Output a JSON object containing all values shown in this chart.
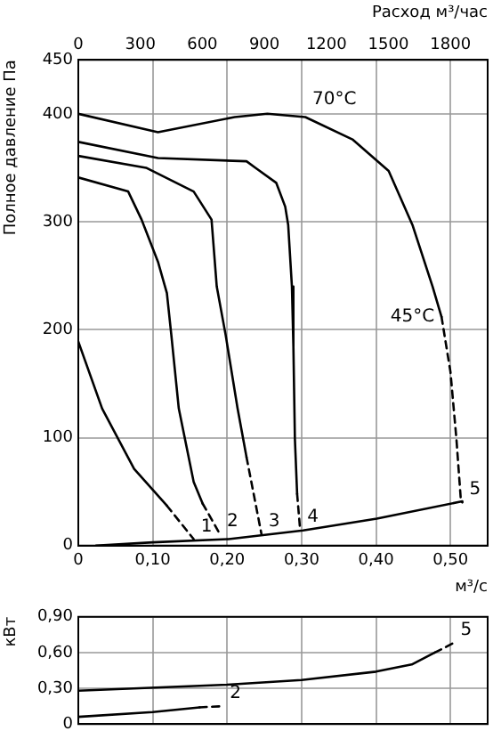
{
  "chart_data": [
    {
      "type": "line",
      "xlabel": "м³/с",
      "ylabel": "Полное давление Па",
      "x2label": "Расход м³/час",
      "xlim": [
        0,
        0.55
      ],
      "xticks": [
        0,
        {
          "value": 0.1,
          "label": "0,10"
        },
        {
          "value": 0.2,
          "label": "0,20"
        },
        {
          "value": 0.3,
          "label": "0,30"
        },
        {
          "value": 0.4,
          "label": "0,40"
        },
        {
          "value": 0.5,
          "label": "0,50"
        }
      ],
      "x2lim": [
        0,
        1980
      ],
      "x2ticks": [
        0,
        300,
        600,
        900,
        1200,
        1500,
        1800
      ],
      "ylim": [
        0,
        450
      ],
      "yticks": [
        0,
        100,
        200,
        300,
        400,
        450
      ],
      "grid": true,
      "legend": false,
      "marker": "none",
      "series": [
        {
          "color": "#000000",
          "line_style": "solid",
          "x": [
            0,
            0.107,
            0.21,
            0.254,
            0.305,
            0.369,
            0.417,
            0.449,
            0.476,
            0.488
          ],
          "values": [
            400,
            383,
            397,
            400,
            397,
            376,
            347,
            297,
            240,
            212
          ]
        },
        {
          "name": "5",
          "color": "#000000",
          "line_style": "dashed",
          "x": [
            0.488,
            0.5,
            0.508,
            0.514,
            0.516
          ],
          "values": [
            212,
            161,
            99,
            42,
            40
          ]
        },
        {
          "color": "#000000",
          "line_style": "solid",
          "x": [
            0,
            0.107,
            0.226,
            0.238,
            0.266,
            0.278,
            0.282,
            0.287,
            0.289,
            0.291,
            0.294
          ],
          "values": [
            374,
            359,
            356,
            350,
            336,
            314,
            297,
            240,
            184,
            99,
            48
          ]
        },
        {
          "name": "4",
          "color": "#000000",
          "line_style": "dashed",
          "x": [
            0.294,
            0.298
          ],
          "values": [
            48,
            15
          ]
        },
        {
          "color": "#000000",
          "line_style": "solid",
          "x": [
            0,
            0.091,
            0.155,
            0.179,
            0.186,
            0.198,
            0.214,
            0.226
          ],
          "values": [
            361,
            350,
            328,
            302,
            240,
            195,
            127,
            82
          ]
        },
        {
          "name": "3",
          "color": "#000000",
          "line_style": "dashed",
          "x": [
            0.226,
            0.246
          ],
          "values": [
            82,
            11
          ]
        },
        {
          "color": "#000000",
          "line_style": "solid",
          "x": [
            0,
            0.067,
            0.085,
            0.107,
            0.119,
            0.125,
            0.135,
            0.155,
            0.167
          ],
          "values": [
            341,
            328,
            302,
            263,
            234,
            195,
            127,
            59,
            39
          ]
        },
        {
          "name": "2",
          "color": "#000000",
          "line_style": "dashed",
          "x": [
            0.167,
            0.19
          ],
          "values": [
            39,
            11
          ]
        },
        {
          "color": "#000000",
          "line_style": "solid",
          "x": [
            0,
            0.032,
            0.075,
            0.119
          ],
          "values": [
            189,
            127,
            71,
            37
          ]
        },
        {
          "name": "1",
          "color": "#000000",
          "line_style": "dashed",
          "x": [
            0.119,
            0.155
          ],
          "values": [
            37,
            6
          ]
        },
        {
          "color": "#000000",
          "line_style": "solid",
          "x": [
            0.024,
            0.1,
            0.202,
            0.302,
            0.401,
            0.516
          ],
          "values": [
            0,
            3,
            6,
            14,
            25,
            41
          ]
        }
      ],
      "annotations": [
        {
          "text": "70°C",
          "x": 0.305,
          "y": 397
        },
        {
          "text": "45°C",
          "x": 0.488,
          "y": 212
        }
      ]
    },
    {
      "type": "line",
      "ylabel": "кВт",
      "tick_labels": "y",
      "xlim": [
        0,
        0.55
      ],
      "xticks": [
        0,
        0.1,
        0.2,
        0.3,
        0.4,
        0.5
      ],
      "ylim": [
        0,
        0.9
      ],
      "yticks": [
        0,
        {
          "value": 0.3,
          "label": "0,30"
        },
        {
          "value": 0.6,
          "label": "0,60"
        },
        {
          "value": 0.9,
          "label": "0,90"
        }
      ],
      "grid": true,
      "legend": false,
      "marker": "none",
      "series": [
        {
          "color": "#000000",
          "line_style": "solid",
          "x": [
            0,
            0.2,
            0.3,
            0.4,
            0.448,
            0.479
          ],
          "values": [
            0.28,
            0.33,
            0.37,
            0.44,
            0.5,
            0.6
          ]
        },
        {
          "name": "5",
          "color": "#000000",
          "line_style": "dashed",
          "x": [
            0.479,
            0.504
          ],
          "values": [
            0.6,
            0.68
          ]
        },
        {
          "color": "#000000",
          "line_style": "solid",
          "x": [
            0,
            0.1,
            0.163
          ],
          "values": [
            0.06,
            0.1,
            0.14
          ]
        },
        {
          "name": "2",
          "color": "#000000",
          "line_style": "dashed",
          "x": [
            0.163,
            0.194
          ],
          "values": [
            0.14,
            0.15
          ]
        }
      ]
    }
  ]
}
